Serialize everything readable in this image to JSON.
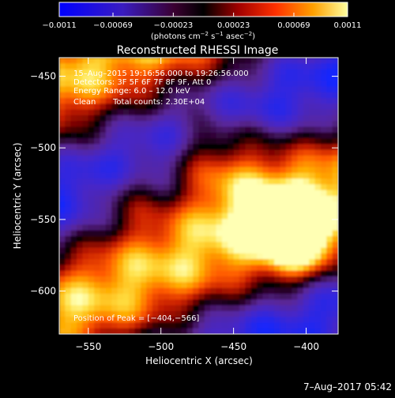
{
  "chart_data": {
    "type": "heatmap",
    "title": "Reconstructed RHESSI Image",
    "xlabel": "Heliocentric X (arcsec)",
    "ylabel": "Heliocentric Y (arcsec)",
    "xlim": [
      -570,
      -378
    ],
    "ylim": [
      -630,
      -437
    ],
    "x_ticks": [
      -550,
      -500,
      -450,
      -400
    ],
    "y_ticks": [
      -450,
      -500,
      -550,
      -600
    ],
    "x_tick_labels": [
      "−550",
      "−500",
      "−450",
      "−400"
    ],
    "y_tick_labels": [
      "−450",
      "−500",
      "−550",
      "−600"
    ],
    "colorbar": {
      "range": [
        -0.0011,
        0.0011
      ],
      "ticks": [
        -0.0011,
        -0.00069,
        -0.00023,
        0.00023,
        0.00069,
        0.0011
      ],
      "tick_labels": [
        "−0.0011",
        "−0.00069",
        "−0.00023",
        "0.00023",
        "0.00069",
        "0.0011"
      ],
      "units_prefix": "(photons cm",
      "units_exp1": "−2",
      "units_mid": " s",
      "units_exp2": "−1",
      "units_mid2": " asec",
      "units_exp3": "−2",
      "units_suffix": ")"
    },
    "annotations": {
      "time_range": "15–Aug–2015 19:16:56.000 to 19:26:56.000",
      "detectors": "Detectors: 3F 5F 6F 7F 8F 9F, Att 0",
      "energy": "Energy Range: 6.0 – 12.0 keV",
      "method": "Clean",
      "counts": "Total counts: 2.30E+04",
      "peak": "Position of Peak = [−404,−566]"
    },
    "peak_position": [
      -404,
      -566
    ],
    "grid": false
  },
  "footer_timestamp": "7–Aug–2017 05:42"
}
